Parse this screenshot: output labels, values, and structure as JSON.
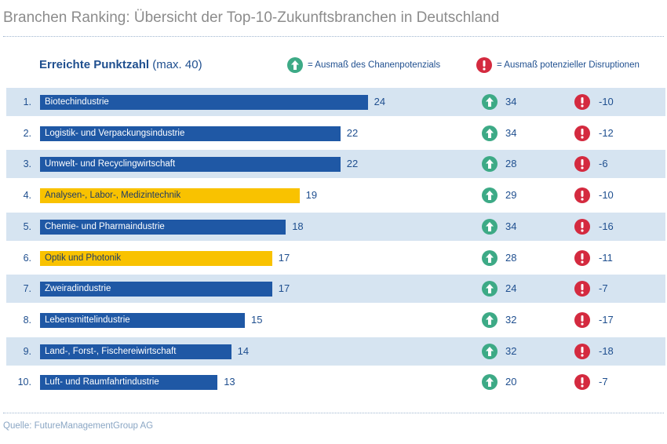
{
  "title": "Branchen Ranking: Übersicht der Top-10-Zukunftsbranchen in Deutschland",
  "header": {
    "score_label": "Erreichte Punktzahl",
    "score_max": "(max. 40)"
  },
  "legend": {
    "potential": {
      "icon": "arrow-up-icon",
      "color": "#3daa86",
      "label": "= Ausmaß des Chanenpotenzials"
    },
    "disruption": {
      "icon": "exclamation-icon",
      "color": "#d42a3f",
      "label": "= Ausmaß potenzieller Disruptionen"
    }
  },
  "colors": {
    "bar_default": "#1f58a5",
    "bar_highlight": "#f9c200",
    "row_shade": "#d6e4f1"
  },
  "chart_data": {
    "type": "bar",
    "title": "Branchen Ranking: Übersicht der Top-10-Zukunftsbranchen in Deutschland",
    "xlabel": "Erreichte Punktzahl (max. 40)",
    "xlim": [
      0,
      40
    ],
    "categories": [
      "Biotechindustrie",
      "Logistik- und Verpackungsindustrie",
      "Umwelt- und Recyclingwirtschaft",
      "Analysen-, Labor-, Medizintechnik",
      "Chemie- und Pharmaindustrie",
      "Optik und Photonik",
      "Zweiradindustrie",
      "Lebensmittelindustrie",
      "Land-, Forst-, Fischereiwirtschaft",
      "Luft- und Raumfahrtindustrie"
    ],
    "ranks": [
      "1.",
      "2.",
      "3.",
      "4.",
      "5.",
      "6.",
      "7.",
      "8.",
      "9.",
      "10."
    ],
    "values": [
      24,
      22,
      22,
      19,
      18,
      17,
      17,
      15,
      14,
      13
    ],
    "highlighted": [
      false,
      false,
      false,
      true,
      false,
      true,
      false,
      false,
      false,
      false
    ],
    "potential": [
      34,
      34,
      28,
      29,
      34,
      28,
      24,
      32,
      32,
      20
    ],
    "disruption": [
      -10,
      -12,
      -6,
      -10,
      -16,
      -11,
      -7,
      -17,
      -18,
      -7
    ]
  },
  "source": "Quelle: FutureManagementGroup AG"
}
